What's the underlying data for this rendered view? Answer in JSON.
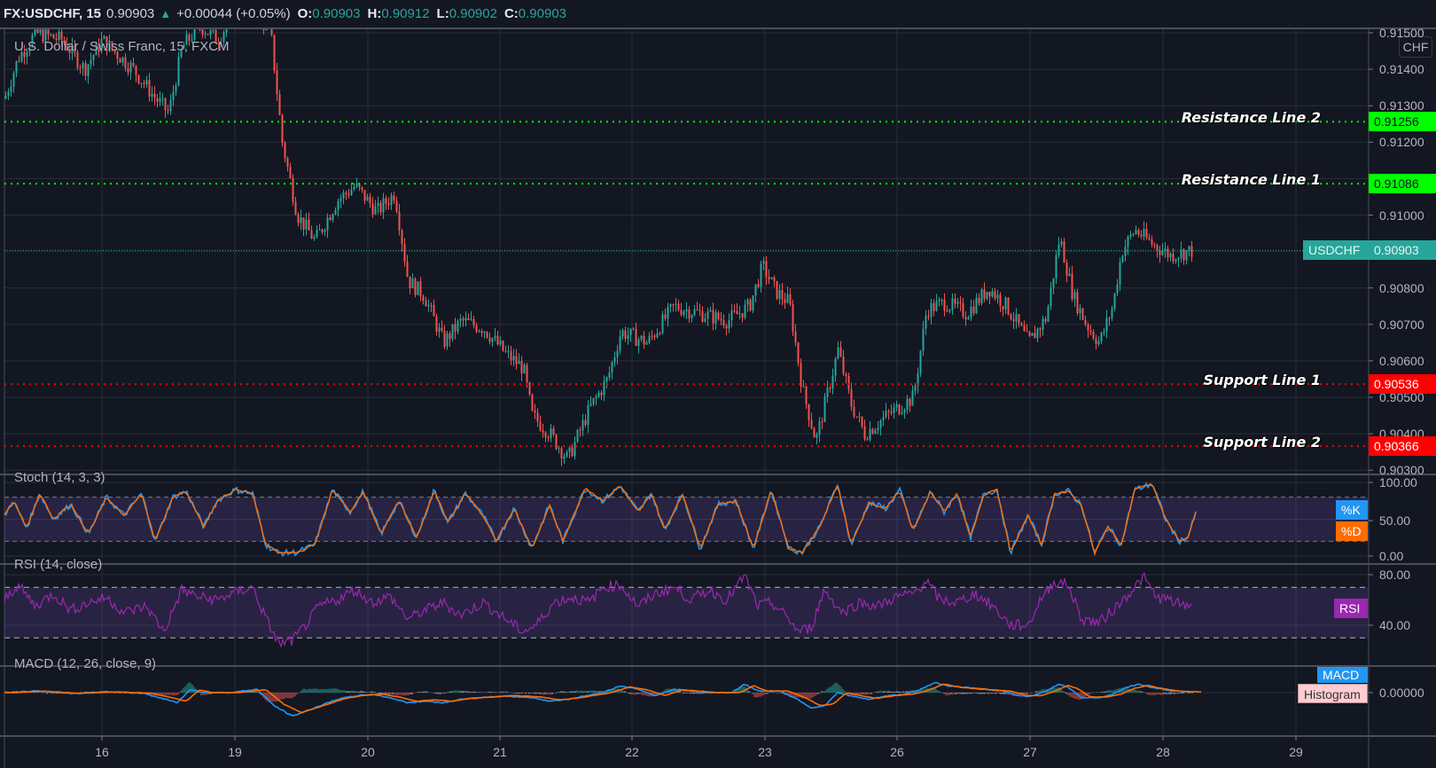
{
  "header": {
    "symbol": "FX:USDCHF, 15",
    "last": "0.90903",
    "change": "+0.00044 (+0.05%)",
    "open_label": "O:",
    "open": "0.90903",
    "high_label": "H:",
    "high": "0.90912",
    "low_label": "L:",
    "low": "0.90902",
    "close_label": "C:",
    "close": "0.90903"
  },
  "main_pane": {
    "title": "U.S. Dollar / Swiss Franc, 15, FXCM",
    "currency_badge": "CHF",
    "price_ticks": [
      "0.91500",
      "0.91400",
      "0.91300",
      "0.91200",
      "0.91000",
      "0.90800",
      "0.90700",
      "0.90600",
      "0.90500",
      "0.90400",
      "0.90300"
    ],
    "symbol_badge": {
      "label": "USDCHF",
      "value": "0.90903",
      "color": "#26a69a"
    },
    "horizontal_lines": [
      {
        "label": "Resistance Line 2",
        "value": "0.91256",
        "color": "#00ff00"
      },
      {
        "label": "Resistance Line 1",
        "value": "0.91086",
        "color": "#00ff00"
      },
      {
        "label": "Support Line 1",
        "value": "0.90536",
        "color": "#ff0000"
      },
      {
        "label": "Support Line 2",
        "value": "0.90366",
        "color": "#ff0000"
      }
    ]
  },
  "stoch_pane": {
    "title": "Stoch (14, 3, 3)",
    "ticks": [
      "100.00",
      "50.00",
      "0.00"
    ],
    "k_label": "%K",
    "k_color": "#2196f3",
    "d_label": "%D",
    "d_color": "#ff6d00"
  },
  "rsi_pane": {
    "title": "RSI (14, close)",
    "ticks": [
      "80.00",
      "40.00"
    ],
    "label": "RSI",
    "color": "#9c27b0"
  },
  "macd_pane": {
    "title": "MACD (12, 26, close, 9)",
    "ticks": [
      "0.00000"
    ],
    "macd_label": "MACD",
    "macd_color": "#2196f3",
    "hist_label": "Histogram",
    "hist_color": "#ffcdd2"
  },
  "time_axis": {
    "labels": [
      "16",
      "19",
      "20",
      "21",
      "22",
      "23",
      "26",
      "27",
      "28",
      "29"
    ]
  },
  "chart_data": {
    "type": "candlestick",
    "title": "U.S. Dollar / Swiss Franc, 15, FXCM",
    "symbol": "FX:USDCHF",
    "interval": "15",
    "xlabel": "",
    "ylabel": "CHF",
    "ylim": [
      0.903,
      0.915
    ],
    "x_ticks": [
      "16",
      "19",
      "20",
      "21",
      "22",
      "23",
      "26",
      "27",
      "28",
      "29"
    ],
    "price_path_approx": [
      {
        "x": "15 (start)",
        "close": 0.9132
      },
      {
        "x": "16",
        "close": 0.9148
      },
      {
        "x": "16 late",
        "close": 0.9128
      },
      {
        "x": "19 mid",
        "close": 0.916
      },
      {
        "x": "19 late",
        "close": 0.9093
      },
      {
        "x": "20",
        "close": 0.9108
      },
      {
        "x": "20 late",
        "close": 0.9072
      },
      {
        "x": "21",
        "close": 0.9065
      },
      {
        "x": "21 late",
        "close": 0.9033
      },
      {
        "x": "22",
        "close": 0.907
      },
      {
        "x": "23",
        "close": 0.909
      },
      {
        "x": "23 late",
        "close": 0.9037
      },
      {
        "x": "26",
        "close": 0.9045
      },
      {
        "x": "26 late",
        "close": 0.9078
      },
      {
        "x": "27",
        "close": 0.9067
      },
      {
        "x": "27 late",
        "close": 0.9095
      },
      {
        "x": "28",
        "close": 0.9099
      },
      {
        "x": "28 (last)",
        "close": 0.90903
      }
    ],
    "horizontal_lines": [
      {
        "name": "Resistance Line 2",
        "y": 0.91256
      },
      {
        "name": "Resistance Line 1",
        "y": 0.91086
      },
      {
        "name": "Support Line 1",
        "y": 0.90536
      },
      {
        "name": "Support Line 2",
        "y": 0.90366
      }
    ],
    "indicators": [
      {
        "name": "Stoch (14, 3, 3)",
        "ylim": [
          0,
          100
        ],
        "bands": [
          20,
          80
        ],
        "series": [
          "%K",
          "%D"
        ]
      },
      {
        "name": "RSI (14, close)",
        "ylim": [
          20,
          85
        ],
        "bands": [
          30,
          70
        ],
        "series": [
          "RSI"
        ]
      },
      {
        "name": "MACD (12, 26, close, 9)",
        "zero": 0.0,
        "series": [
          "MACD",
          "Signal",
          "Histogram"
        ]
      }
    ],
    "anchors": {
      "price": [
        [
          5,
          0.9132
        ],
        [
          20,
          0.9143
        ],
        [
          40,
          0.915
        ],
        [
          70,
          0.9148
        ],
        [
          95,
          0.914
        ],
        [
          115,
          0.9148
        ],
        [
          150,
          0.914
        ],
        [
          175,
          0.9132
        ],
        [
          190,
          0.9128
        ],
        [
          205,
          0.9146
        ],
        [
          225,
          0.9152
        ],
        [
          245,
          0.9148
        ],
        [
          262,
          0.9155
        ],
        [
          285,
          0.9158
        ],
        [
          305,
          0.915
        ],
        [
          318,
          0.912
        ],
        [
          335,
          0.91
        ],
        [
          355,
          0.9093
        ],
        [
          380,
          0.9104
        ],
        [
          400,
          0.9108
        ],
        [
          425,
          0.9101
        ],
        [
          445,
          0.9106
        ],
        [
          460,
          0.9082
        ],
        [
          478,
          0.9078
        ],
        [
          500,
          0.9065
        ],
        [
          520,
          0.9071
        ],
        [
          545,
          0.9069
        ],
        [
          570,
          0.9062
        ],
        [
          590,
          0.9058
        ],
        [
          600,
          0.9045
        ],
        [
          620,
          0.904
        ],
        [
          640,
          0.9033
        ],
        [
          665,
          0.9047
        ],
        [
          685,
          0.9055
        ],
        [
          700,
          0.9068
        ],
        [
          730,
          0.9065
        ],
        [
          760,
          0.9075
        ],
        [
          790,
          0.9073
        ],
        [
          820,
          0.9071
        ],
        [
          845,
          0.9075
        ],
        [
          860,
          0.9086
        ],
        [
          875,
          0.9079
        ],
        [
          890,
          0.9076
        ],
        [
          905,
          0.9052
        ],
        [
          920,
          0.9038
        ],
        [
          945,
          0.9063
        ],
        [
          960,
          0.9048
        ],
        [
          975,
          0.904
        ],
        [
          1000,
          0.9045
        ],
        [
          1030,
          0.905
        ],
        [
          1045,
          0.9074
        ],
        [
          1065,
          0.9076
        ],
        [
          1090,
          0.9073
        ],
        [
          1115,
          0.908
        ],
        [
          1135,
          0.9075
        ],
        [
          1160,
          0.9065
        ],
        [
          1180,
          0.9072
        ],
        [
          1195,
          0.9094
        ],
        [
          1210,
          0.9078
        ],
        [
          1225,
          0.907
        ],
        [
          1240,
          0.9065
        ],
        [
          1255,
          0.9075
        ],
        [
          1265,
          0.909
        ],
        [
          1280,
          0.9096
        ],
        [
          1300,
          0.9092
        ],
        [
          1320,
          0.9089
        ],
        [
          1345,
          0.90903
        ]
      ],
      "stoch": [
        [
          5,
          55
        ],
        [
          15,
          75
        ],
        [
          30,
          38
        ],
        [
          45,
          85
        ],
        [
          60,
          50
        ],
        [
          80,
          70
        ],
        [
          100,
          30
        ],
        [
          120,
          80
        ],
        [
          140,
          55
        ],
        [
          160,
          85
        ],
        [
          175,
          20
        ],
        [
          195,
          80
        ],
        [
          210,
          88
        ],
        [
          230,
          40
        ],
        [
          245,
          75
        ],
        [
          265,
          90
        ],
        [
          285,
          85
        ],
        [
          300,
          15
        ],
        [
          315,
          4
        ],
        [
          335,
          5
        ],
        [
          355,
          15
        ],
        [
          375,
          90
        ],
        [
          395,
          60
        ],
        [
          410,
          88
        ],
        [
          430,
          30
        ],
        [
          450,
          75
        ],
        [
          470,
          25
        ],
        [
          490,
          90
        ],
        [
          505,
          45
        ],
        [
          525,
          85
        ],
        [
          545,
          55
        ],
        [
          560,
          20
        ],
        [
          580,
          65
        ],
        [
          600,
          10
        ],
        [
          620,
          70
        ],
        [
          635,
          20
        ],
        [
          660,
          92
        ],
        [
          680,
          75
        ],
        [
          700,
          95
        ],
        [
          720,
          60
        ],
        [
          735,
          85
        ],
        [
          750,
          35
        ],
        [
          770,
          85
        ],
        [
          790,
          10
        ],
        [
          810,
          70
        ],
        [
          830,
          75
        ],
        [
          850,
          10
        ],
        [
          870,
          90
        ],
        [
          890,
          10
        ],
        [
          905,
          5
        ],
        [
          925,
          40
        ],
        [
          945,
          98
        ],
        [
          960,
          15
        ],
        [
          980,
          72
        ],
        [
          1000,
          65
        ],
        [
          1015,
          90
        ],
        [
          1030,
          35
        ],
        [
          1050,
          88
        ],
        [
          1065,
          60
        ],
        [
          1080,
          85
        ],
        [
          1095,
          25
        ],
        [
          1110,
          85
        ],
        [
          1125,
          90
        ],
        [
          1140,
          5
        ],
        [
          1160,
          55
        ],
        [
          1175,
          15
        ],
        [
          1190,
          85
        ],
        [
          1205,
          88
        ],
        [
          1220,
          70
        ],
        [
          1235,
          4
        ],
        [
          1250,
          40
        ],
        [
          1265,
          15
        ],
        [
          1280,
          90
        ],
        [
          1300,
          98
        ],
        [
          1315,
          50
        ],
        [
          1330,
          20
        ],
        [
          1340,
          25
        ],
        [
          1350,
          62
        ]
      ],
      "rsi": [
        [
          5,
          60
        ],
        [
          20,
          72
        ],
        [
          40,
          55
        ],
        [
          60,
          65
        ],
        [
          80,
          52
        ],
        [
          100,
          58
        ],
        [
          120,
          62
        ],
        [
          140,
          50
        ],
        [
          165,
          55
        ],
        [
          185,
          35
        ],
        [
          205,
          68
        ],
        [
          225,
          62
        ],
        [
          245,
          60
        ],
        [
          265,
          66
        ],
        [
          285,
          70
        ],
        [
          300,
          45
        ],
        [
          315,
          25
        ],
        [
          330,
          28
        ],
        [
          345,
          40
        ],
        [
          360,
          55
        ],
        [
          380,
          60
        ],
        [
          400,
          68
        ],
        [
          420,
          58
        ],
        [
          440,
          63
        ],
        [
          460,
          45
        ],
        [
          480,
          52
        ],
        [
          500,
          58
        ],
        [
          520,
          48
        ],
        [
          545,
          58
        ],
        [
          570,
          45
        ],
        [
          590,
          35
        ],
        [
          605,
          40
        ],
        [
          625,
          58
        ],
        [
          645,
          62
        ],
        [
          665,
          58
        ],
        [
          680,
          70
        ],
        [
          700,
          72
        ],
        [
          720,
          55
        ],
        [
          740,
          65
        ],
        [
          760,
          70
        ],
        [
          780,
          60
        ],
        [
          800,
          68
        ],
        [
          820,
          60
        ],
        [
          840,
          79
        ],
        [
          855,
          55
        ],
        [
          870,
          58
        ],
        [
          890,
          45
        ],
        [
          900,
          35
        ],
        [
          915,
          38
        ],
        [
          930,
          68
        ],
        [
          950,
          50
        ],
        [
          970,
          58
        ],
        [
          990,
          55
        ],
        [
          1010,
          62
        ],
        [
          1030,
          65
        ],
        [
          1045,
          75
        ],
        [
          1060,
          60
        ],
        [
          1080,
          58
        ],
        [
          1100,
          65
        ],
        [
          1120,
          55
        ],
        [
          1140,
          40
        ],
        [
          1160,
          40
        ],
        [
          1175,
          62
        ],
        [
          1190,
          75
        ],
        [
          1205,
          72
        ],
        [
          1220,
          45
        ],
        [
          1240,
          42
        ],
        [
          1260,
          55
        ],
        [
          1280,
          70
        ],
        [
          1290,
          78
        ],
        [
          1305,
          62
        ],
        [
          1320,
          60
        ],
        [
          1335,
          55
        ],
        [
          1345,
          57
        ]
      ],
      "macd": [
        [
          5,
          0
        ],
        [
          40,
          1
        ],
        [
          80,
          -0.5
        ],
        [
          120,
          0.5
        ],
        [
          160,
          -0.3
        ],
        [
          180,
          -3
        ],
        [
          200,
          -6
        ],
        [
          215,
          2
        ],
        [
          230,
          0
        ],
        [
          260,
          0
        ],
        [
          290,
          2
        ],
        [
          310,
          -8
        ],
        [
          330,
          -14
        ],
        [
          350,
          -10
        ],
        [
          380,
          -4
        ],
        [
          400,
          -2
        ],
        [
          420,
          -1
        ],
        [
          440,
          -3
        ],
        [
          460,
          -6
        ],
        [
          480,
          -5
        ],
        [
          500,
          -6
        ],
        [
          520,
          -4
        ],
        [
          545,
          -3
        ],
        [
          570,
          -2
        ],
        [
          600,
          -3
        ],
        [
          620,
          -5
        ],
        [
          640,
          -4
        ],
        [
          660,
          -2
        ],
        [
          680,
          0
        ],
        [
          700,
          4
        ],
        [
          720,
          2
        ],
        [
          740,
          -2
        ],
        [
          760,
          2
        ],
        [
          780,
          1
        ],
        [
          800,
          0
        ],
        [
          825,
          0
        ],
        [
          840,
          5
        ],
        [
          855,
          1
        ],
        [
          880,
          1
        ],
        [
          900,
          -4
        ],
        [
          915,
          -9
        ],
        [
          930,
          -8
        ],
        [
          945,
          0
        ],
        [
          960,
          -2
        ],
        [
          980,
          -4
        ],
        [
          1000,
          -2
        ],
        [
          1020,
          -1
        ],
        [
          1035,
          1
        ],
        [
          1055,
          6
        ],
        [
          1070,
          4
        ],
        [
          1090,
          3
        ],
        [
          1110,
          2
        ],
        [
          1130,
          1
        ],
        [
          1150,
          -2
        ],
        [
          1165,
          -2
        ],
        [
          1180,
          1
        ],
        [
          1195,
          5
        ],
        [
          1205,
          3
        ],
        [
          1220,
          -3
        ],
        [
          1240,
          -3
        ],
        [
          1255,
          -1
        ],
        [
          1270,
          3
        ],
        [
          1285,
          5
        ],
        [
          1300,
          3
        ],
        [
          1320,
          1
        ],
        [
          1345,
          0.5
        ]
      ]
    }
  }
}
